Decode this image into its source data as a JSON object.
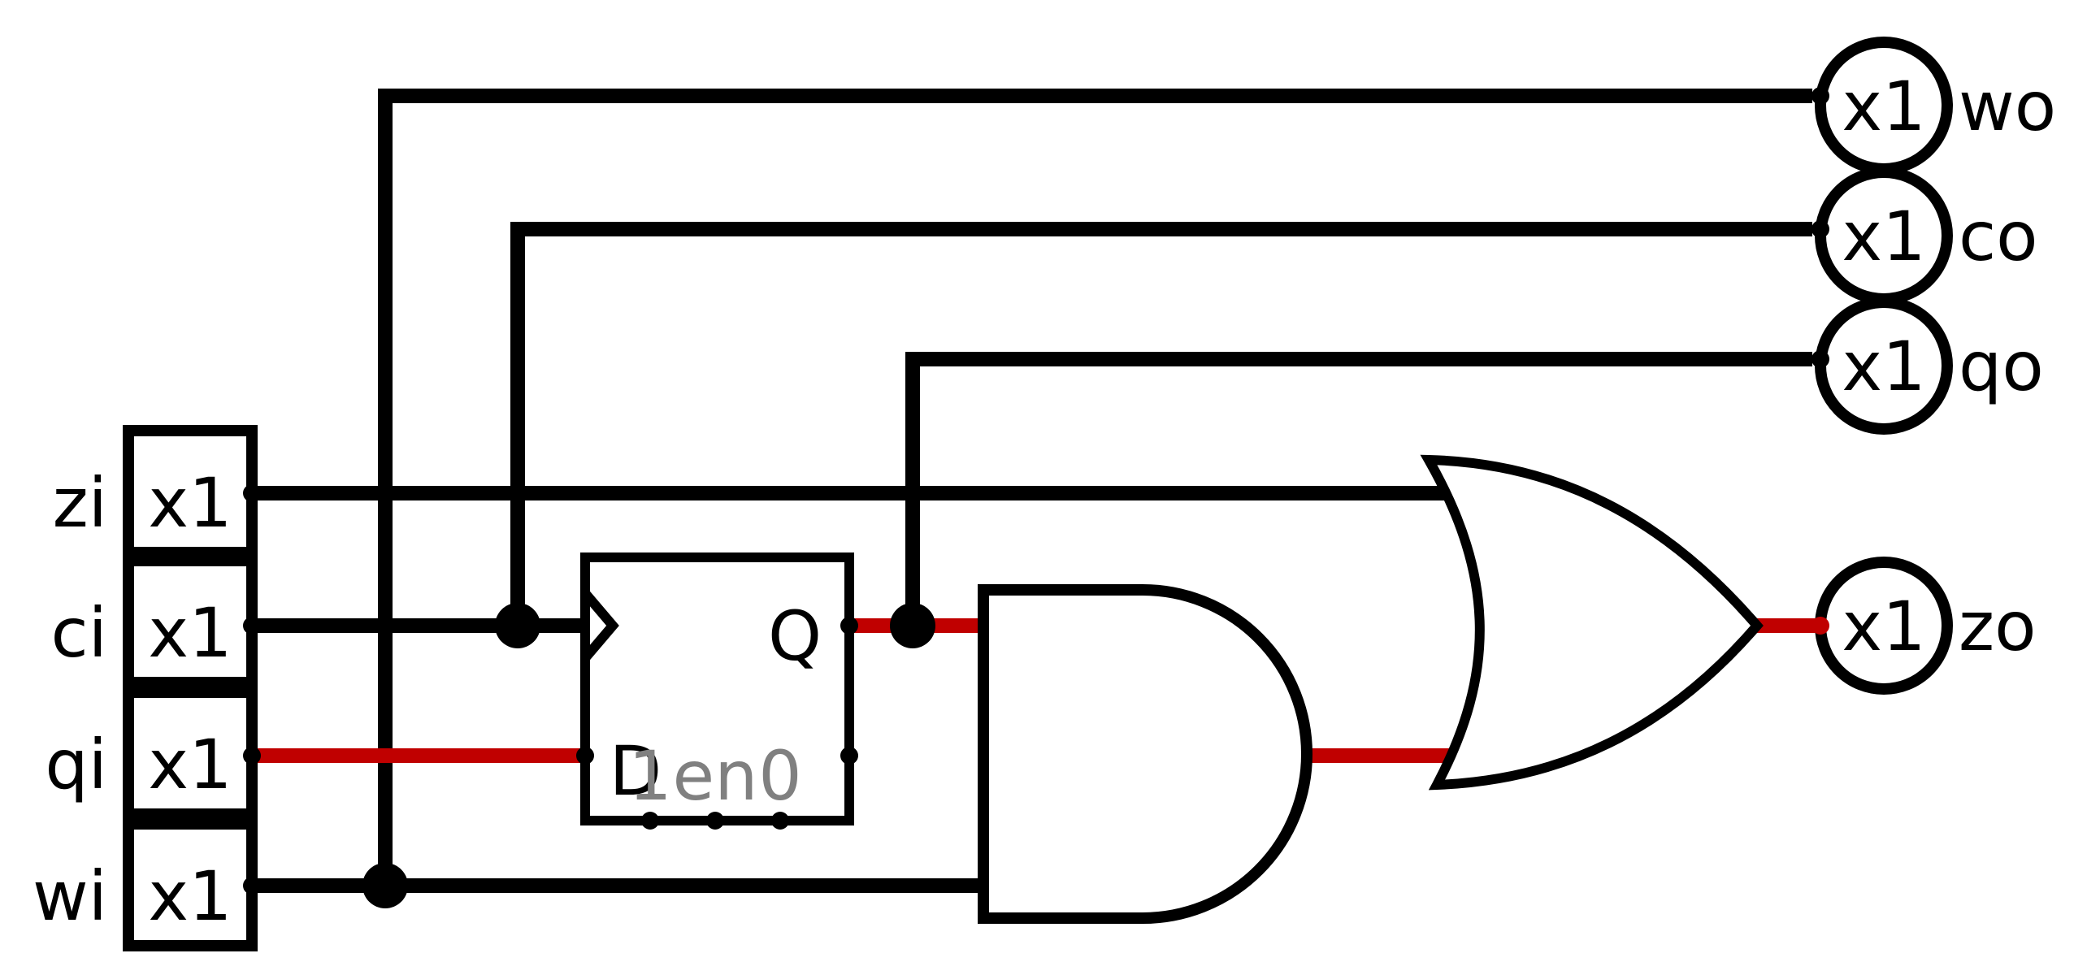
{
  "colors": {
    "wire": "#000000",
    "active_wire": "#c00000",
    "dim_text": "#808080",
    "background": "#ffffff"
  },
  "inputs": [
    {
      "name": "zi",
      "width": "x1"
    },
    {
      "name": "ci",
      "width": "x1"
    },
    {
      "name": "qi",
      "width": "x1"
    },
    {
      "name": "wi",
      "width": "x1"
    }
  ],
  "outputs": [
    {
      "name": "wo",
      "width": "x1"
    },
    {
      "name": "co",
      "width": "x1"
    },
    {
      "name": "qo",
      "width": "x1"
    },
    {
      "name": "zo",
      "width": "x1"
    }
  ],
  "flipflop": {
    "q_label": "Q",
    "d_label": "D",
    "bottom_pins": [
      "1",
      "en",
      "0"
    ]
  },
  "gates": [
    "and-gate",
    "or-gate"
  ]
}
